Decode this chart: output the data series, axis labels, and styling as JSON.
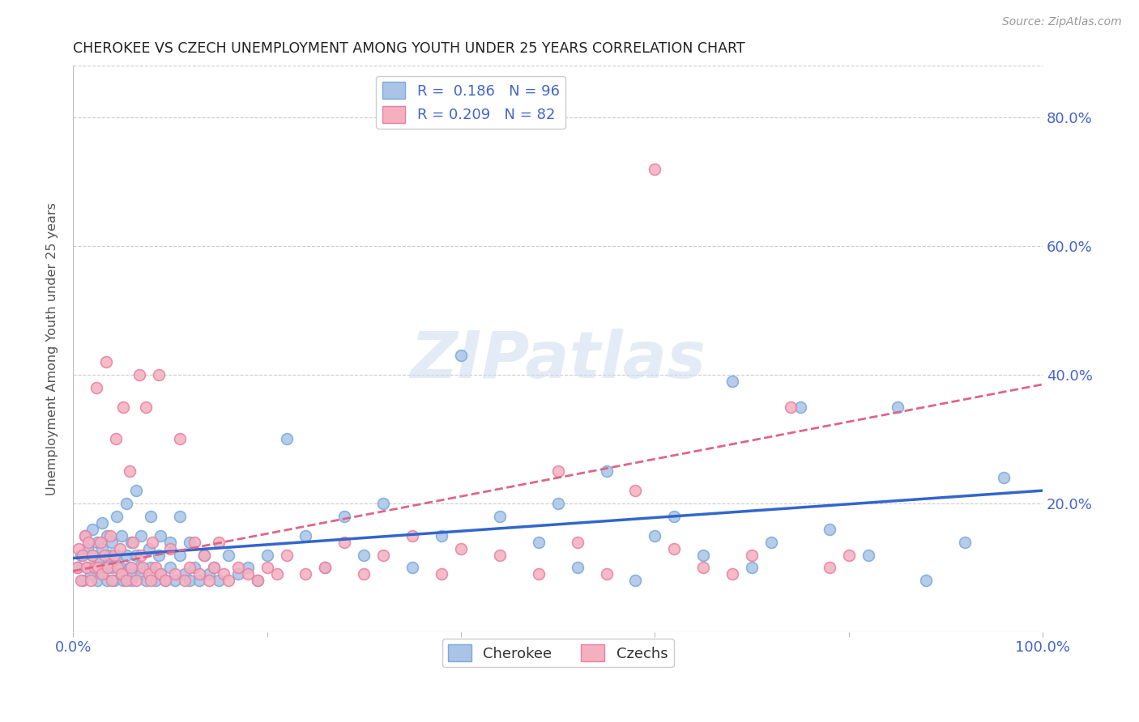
{
  "title": "CHEROKEE VS CZECH UNEMPLOYMENT AMONG YOUTH UNDER 25 YEARS CORRELATION CHART",
  "source": "Source: ZipAtlas.com",
  "ylabel": "Unemployment Among Youth under 25 years",
  "xlim": [
    0,
    1
  ],
  "ylim": [
    0,
    0.88
  ],
  "cherokee_color": "#aac4e8",
  "cherokee_edge_color": "#7aaad8",
  "czech_color": "#f5b0c0",
  "czech_edge_color": "#e880a0",
  "cherokee_R": 0.186,
  "cherokee_N": 96,
  "czech_R": 0.209,
  "czech_N": 82,
  "cherokee_line_color": "#3366cc",
  "czech_line_color": "#dd6688",
  "legend_text_color": "#4466cc",
  "axis_tick_color": "#4466cc",
  "watermark": "ZIPatlas",
  "watermark_color": "#ccddf0",
  "background_color": "#ffffff",
  "grid_color": "#cccccc",
  "cherokee_x": [
    0.005,
    0.008,
    0.01,
    0.012,
    0.015,
    0.015,
    0.018,
    0.02,
    0.02,
    0.022,
    0.025,
    0.025,
    0.028,
    0.03,
    0.03,
    0.03,
    0.032,
    0.035,
    0.035,
    0.038,
    0.04,
    0.04,
    0.042,
    0.045,
    0.045,
    0.048,
    0.05,
    0.05,
    0.052,
    0.055,
    0.055,
    0.058,
    0.06,
    0.06,
    0.062,
    0.065,
    0.065,
    0.068,
    0.07,
    0.07,
    0.075,
    0.078,
    0.08,
    0.08,
    0.085,
    0.088,
    0.09,
    0.09,
    0.095,
    0.1,
    0.1,
    0.105,
    0.11,
    0.11,
    0.115,
    0.12,
    0.12,
    0.125,
    0.13,
    0.135,
    0.14,
    0.145,
    0.15,
    0.16,
    0.17,
    0.18,
    0.19,
    0.2,
    0.22,
    0.24,
    0.26,
    0.28,
    0.3,
    0.32,
    0.35,
    0.38,
    0.4,
    0.44,
    0.48,
    0.5,
    0.52,
    0.55,
    0.58,
    0.6,
    0.62,
    0.65,
    0.68,
    0.7,
    0.72,
    0.75,
    0.78,
    0.82,
    0.85,
    0.88,
    0.92,
    0.96
  ],
  "cherokee_y": [
    0.1,
    0.12,
    0.08,
    0.15,
    0.1,
    0.13,
    0.09,
    0.12,
    0.16,
    0.1,
    0.08,
    0.14,
    0.11,
    0.09,
    0.13,
    0.17,
    0.1,
    0.08,
    0.15,
    0.12,
    0.1,
    0.14,
    0.08,
    0.12,
    0.18,
    0.1,
    0.09,
    0.15,
    0.08,
    0.12,
    0.2,
    0.1,
    0.08,
    0.14,
    0.09,
    0.12,
    0.22,
    0.1,
    0.09,
    0.15,
    0.08,
    0.13,
    0.1,
    0.18,
    0.08,
    0.12,
    0.09,
    0.15,
    0.08,
    0.1,
    0.14,
    0.08,
    0.12,
    0.18,
    0.09,
    0.08,
    0.14,
    0.1,
    0.08,
    0.12,
    0.09,
    0.1,
    0.08,
    0.12,
    0.09,
    0.1,
    0.08,
    0.12,
    0.3,
    0.15,
    0.1,
    0.18,
    0.12,
    0.2,
    0.1,
    0.15,
    0.43,
    0.18,
    0.14,
    0.2,
    0.1,
    0.25,
    0.08,
    0.15,
    0.18,
    0.12,
    0.39,
    0.1,
    0.14,
    0.35,
    0.16,
    0.12,
    0.35,
    0.08,
    0.14,
    0.24
  ],
  "czech_x": [
    0.004,
    0.006,
    0.008,
    0.01,
    0.012,
    0.014,
    0.016,
    0.018,
    0.02,
    0.022,
    0.024,
    0.026,
    0.028,
    0.03,
    0.032,
    0.034,
    0.036,
    0.038,
    0.04,
    0.042,
    0.044,
    0.046,
    0.048,
    0.05,
    0.052,
    0.055,
    0.058,
    0.06,
    0.062,
    0.065,
    0.068,
    0.07,
    0.072,
    0.075,
    0.078,
    0.08,
    0.082,
    0.085,
    0.088,
    0.09,
    0.095,
    0.1,
    0.105,
    0.11,
    0.115,
    0.12,
    0.125,
    0.13,
    0.135,
    0.14,
    0.145,
    0.15,
    0.155,
    0.16,
    0.17,
    0.18,
    0.19,
    0.2,
    0.21,
    0.22,
    0.24,
    0.26,
    0.28,
    0.3,
    0.32,
    0.35,
    0.38,
    0.4,
    0.44,
    0.48,
    0.5,
    0.52,
    0.55,
    0.58,
    0.6,
    0.62,
    0.65,
    0.68,
    0.7,
    0.74,
    0.78,
    0.8
  ],
  "czech_y": [
    0.1,
    0.13,
    0.08,
    0.12,
    0.15,
    0.1,
    0.14,
    0.08,
    0.12,
    0.1,
    0.38,
    0.1,
    0.14,
    0.09,
    0.12,
    0.42,
    0.1,
    0.15,
    0.08,
    0.12,
    0.3,
    0.1,
    0.13,
    0.09,
    0.35,
    0.08,
    0.25,
    0.1,
    0.14,
    0.08,
    0.4,
    0.12,
    0.1,
    0.35,
    0.09,
    0.08,
    0.14,
    0.1,
    0.4,
    0.09,
    0.08,
    0.13,
    0.09,
    0.3,
    0.08,
    0.1,
    0.14,
    0.09,
    0.12,
    0.08,
    0.1,
    0.14,
    0.09,
    0.08,
    0.1,
    0.09,
    0.08,
    0.1,
    0.09,
    0.12,
    0.09,
    0.1,
    0.14,
    0.09,
    0.12,
    0.15,
    0.09,
    0.13,
    0.12,
    0.09,
    0.25,
    0.14,
    0.09,
    0.22,
    0.72,
    0.13,
    0.1,
    0.09,
    0.12,
    0.35,
    0.1,
    0.12
  ],
  "cherokee_line_intercept": 0.115,
  "cherokee_line_slope": 0.105,
  "czech_line_intercept": 0.095,
  "czech_line_slope": 0.29
}
